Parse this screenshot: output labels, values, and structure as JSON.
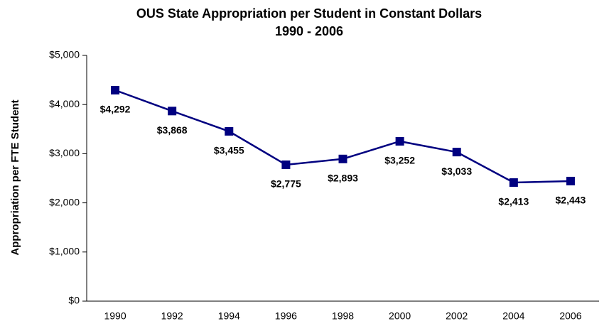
{
  "chart_data": {
    "type": "line",
    "title": "OUS State Appropriation per Student in Constant Dollars",
    "subtitle": "1990 - 2006",
    "y_label": "Appropriation per FTE Student",
    "categories": [
      "1990",
      "1992",
      "1994",
      "1996",
      "1998",
      "2000",
      "2002",
      "2004",
      "2006"
    ],
    "values": [
      4292,
      3868,
      3455,
      2775,
      2893,
      3252,
      3033,
      2413,
      2443
    ],
    "value_labels": [
      "$4,292",
      "$3,868",
      "$3,455",
      "$2,775",
      "$2,893",
      "$3,252",
      "$3,033",
      "$2,413",
      "$2,443"
    ],
    "color": "#000080",
    "ylim": [
      0,
      5000
    ],
    "yticks": [
      {
        "value": 0,
        "label": "$0"
      },
      {
        "value": 1000,
        "label": "$1,000"
      },
      {
        "value": 2000,
        "label": "$2,000"
      },
      {
        "value": 3000,
        "label": "$3,000"
      },
      {
        "value": 4000,
        "label": "$4,000"
      },
      {
        "value": 5000,
        "label": "$5,000"
      }
    ],
    "grid": false
  }
}
